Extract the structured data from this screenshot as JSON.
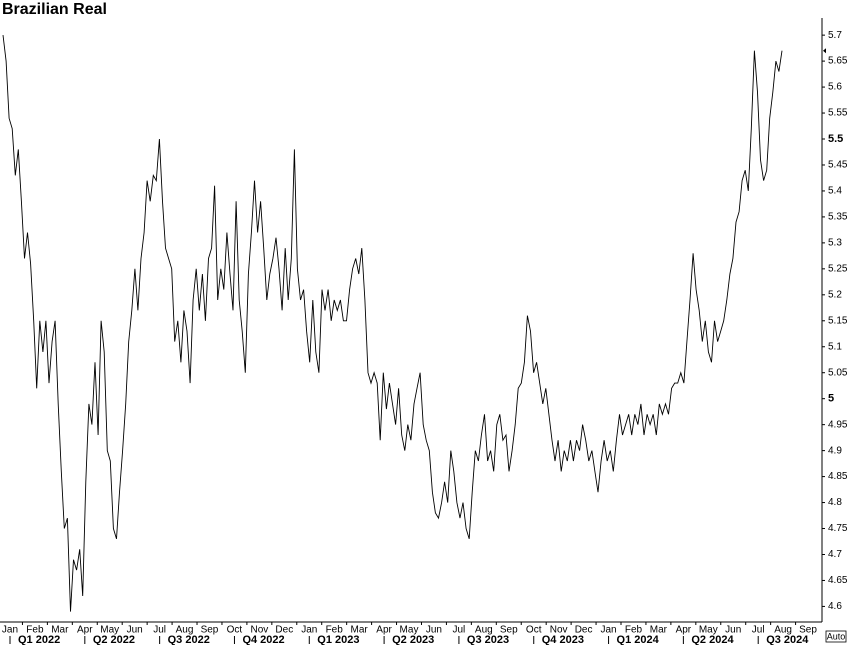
{
  "chart_data": {
    "type": "line",
    "title": "Brazilian Real",
    "months": [
      "Jan",
      "Feb",
      "Mar",
      "Apr",
      "May",
      "Jun",
      "Jul",
      "Aug",
      "Sep",
      "Oct",
      "Nov",
      "Dec",
      "Jan",
      "Feb",
      "Mar",
      "Apr",
      "May",
      "Jun",
      "Jul",
      "Aug",
      "Sep",
      "Oct",
      "Nov",
      "Dec",
      "Jan",
      "Feb",
      "Mar",
      "Apr",
      "May",
      "Jun",
      "Jul",
      "Aug",
      "Sep"
    ],
    "quarters": [
      "Q1 2022",
      "Q2 2022",
      "Q3 2022",
      "Q4 2022",
      "Q1 2023",
      "Q2 2023",
      "Q3 2023",
      "Q4 2023",
      "Q1 2024",
      "Q2 2024",
      "Q3 2024"
    ],
    "color": "#000000",
    "values": [
      5.7,
      5.65,
      5.54,
      5.52,
      5.43,
      5.48,
      5.38,
      5.27,
      5.32,
      5.26,
      5.15,
      5.02,
      5.15,
      5.09,
      5.15,
      5.03,
      5.11,
      5.15,
      4.99,
      4.86,
      4.75,
      4.77,
      4.59,
      4.69,
      4.67,
      4.71,
      4.62,
      4.84,
      4.99,
      4.95,
      5.07,
      4.93,
      5.15,
      5.09,
      4.9,
      4.88,
      4.75,
      4.73,
      4.82,
      4.9,
      4.99,
      5.11,
      5.17,
      5.25,
      5.17,
      5.27,
      5.32,
      5.42,
      5.38,
      5.43,
      5.42,
      5.5,
      5.38,
      5.29,
      5.27,
      5.25,
      5.11,
      5.15,
      5.07,
      5.17,
      5.13,
      5.03,
      5.19,
      5.25,
      5.17,
      5.24,
      5.15,
      5.27,
      5.29,
      5.41,
      5.19,
      5.25,
      5.21,
      5.32,
      5.24,
      5.17,
      5.38,
      5.19,
      5.13,
      5.05,
      5.24,
      5.32,
      5.42,
      5.32,
      5.38,
      5.29,
      5.19,
      5.24,
      5.27,
      5.31,
      5.25,
      5.17,
      5.29,
      5.19,
      5.27,
      5.48,
      5.25,
      5.19,
      5.21,
      5.13,
      5.07,
      5.19,
      5.09,
      5.05,
      5.21,
      5.17,
      5.21,
      5.15,
      5.19,
      5.17,
      5.19,
      5.15,
      5.15,
      5.21,
      5.25,
      5.27,
      5.24,
      5.29,
      5.19,
      5.05,
      5.03,
      5.05,
      5.03,
      4.92,
      5.05,
      4.98,
      5.03,
      4.99,
      4.95,
      5.02,
      4.93,
      4.9,
      4.95,
      4.92,
      4.99,
      5.02,
      5.05,
      4.95,
      4.92,
      4.9,
      4.82,
      4.78,
      4.77,
      4.8,
      4.84,
      4.8,
      4.9,
      4.86,
      4.8,
      4.77,
      4.8,
      4.75,
      4.73,
      4.82,
      4.9,
      4.88,
      4.93,
      4.97,
      4.88,
      4.9,
      4.86,
      4.95,
      4.97,
      4.92,
      4.93,
      4.86,
      4.9,
      4.95,
      5.02,
      5.03,
      5.07,
      5.16,
      5.13,
      5.05,
      5.07,
      5.03,
      4.99,
      5.02,
      4.97,
      4.92,
      4.88,
      4.92,
      4.86,
      4.9,
      4.88,
      4.92,
      4.88,
      4.92,
      4.9,
      4.95,
      4.92,
      4.88,
      4.9,
      4.86,
      4.82,
      4.88,
      4.92,
      4.88,
      4.9,
      4.86,
      4.92,
      4.97,
      4.93,
      4.95,
      4.97,
      4.93,
      4.97,
      4.95,
      4.99,
      4.93,
      4.97,
      4.95,
      4.97,
      4.93,
      4.99,
      4.97,
      4.99,
      4.97,
      5.02,
      5.03,
      5.03,
      5.05,
      5.03,
      5.11,
      5.19,
      5.28,
      5.21,
      5.17,
      5.11,
      5.15,
      5.09,
      5.07,
      5.15,
      5.11,
      5.13,
      5.15,
      5.19,
      5.24,
      5.27,
      5.34,
      5.36,
      5.42,
      5.44,
      5.4,
      5.52,
      5.67,
      5.59,
      5.46,
      5.42,
      5.44,
      5.54,
      5.59,
      5.65,
      5.63,
      5.67
    ],
    "ylim": [
      4.57,
      5.733
    ],
    "yticks": [
      4.6,
      4.65,
      4.7,
      4.75,
      4.8,
      4.85,
      4.9,
      4.95,
      5,
      5.05,
      5.1,
      5.15,
      5.2,
      5.25,
      5.3,
      5.35,
      5.4,
      5.45,
      5.5,
      5.55,
      5.6,
      5.65,
      5.7
    ],
    "scale_mode": "Auto"
  }
}
